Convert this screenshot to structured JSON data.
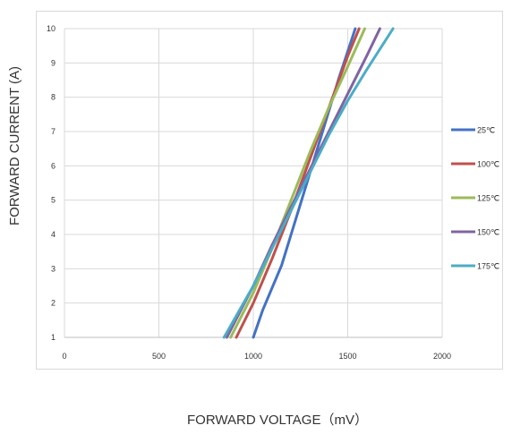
{
  "chart_data": {
    "type": "line",
    "title": "",
    "xlabel": "FORWARD  VOLTAGE（mV）",
    "ylabel": "FORWARD CURRENT (A)",
    "xlim": [
      0,
      2000
    ],
    "ylim": [
      1,
      10
    ],
    "x_ticks": [
      "0",
      "500",
      "1000",
      "1500",
      "2000"
    ],
    "y_ticks": [
      "1",
      "2",
      "3",
      "4",
      "5",
      "6",
      "7",
      "8",
      "9",
      "10"
    ],
    "grid": true,
    "legend_position": "right",
    "series": [
      {
        "name": "25℃",
        "color": "#4472C4",
        "x": [
          1000,
          1050,
          1150,
          1250,
          1350,
          1450,
          1540
        ],
        "y": [
          1,
          1.8,
          3.1,
          4.9,
          6.7,
          8.5,
          10
        ]
      },
      {
        "name": "100℃",
        "color": "#C0504D",
        "x": [
          910,
          1000,
          1100,
          1200,
          1300,
          1400,
          1500,
          1560
        ],
        "y": [
          1,
          2.0,
          3.3,
          4.7,
          6.2,
          7.7,
          9.2,
          10
        ]
      },
      {
        "name": "125℃",
        "color": "#9BBB59",
        "x": [
          880,
          1000,
          1100,
          1200,
          1300,
          1400,
          1500,
          1590
        ],
        "y": [
          1,
          2.3,
          3.6,
          5.0,
          6.4,
          7.7,
          8.9,
          10
        ]
      },
      {
        "name": "150℃",
        "color": "#8064A2",
        "x": [
          860,
          1000,
          1100,
          1200,
          1300,
          1400,
          1500,
          1600,
          1670
        ],
        "y": [
          1,
          2.5,
          3.7,
          4.8,
          5.9,
          7.0,
          8.1,
          9.2,
          10
        ]
      },
      {
        "name": "175℃",
        "color": "#4BACC6",
        "x": [
          845,
          1000,
          1100,
          1200,
          1300,
          1400,
          1500,
          1600,
          1740
        ],
        "y": [
          1,
          2.5,
          3.6,
          4.7,
          5.8,
          6.9,
          7.9,
          8.8,
          10
        ]
      }
    ]
  }
}
